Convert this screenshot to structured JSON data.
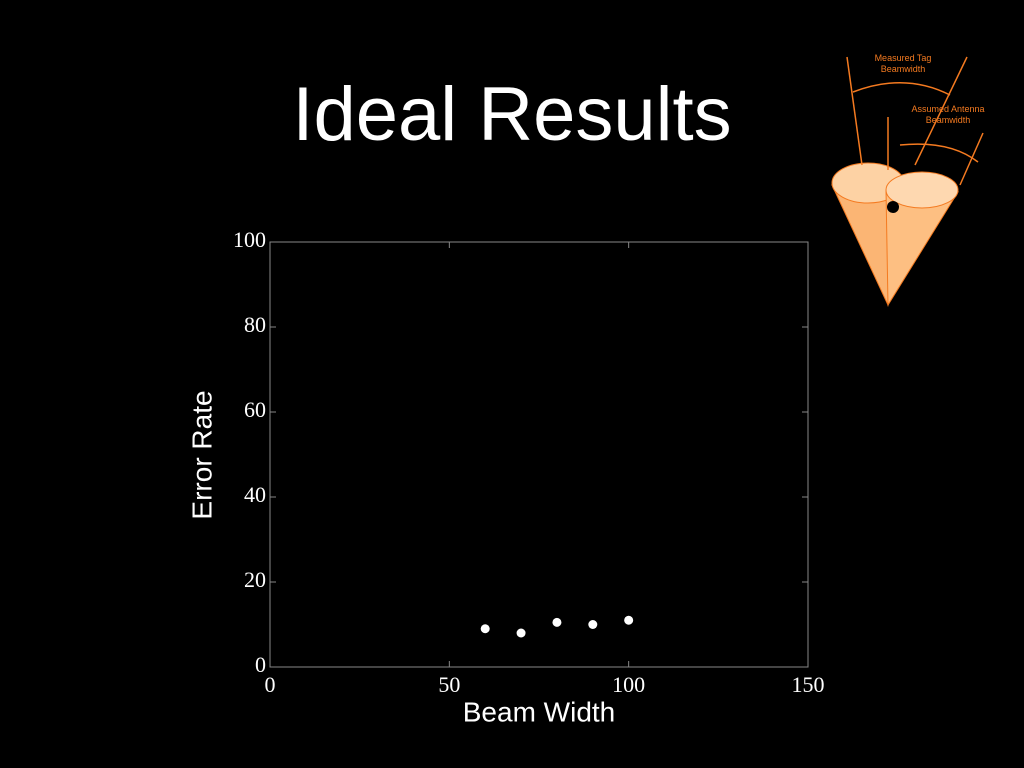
{
  "chart_data": {
    "type": "scatter",
    "title": "Ideal Results",
    "x_label": "Beam Width",
    "y_label": "Error Rate",
    "x": [
      60,
      70,
      80,
      90,
      100
    ],
    "values": [
      9,
      8,
      10.5,
      10,
      11
    ],
    "color": "#ffffff",
    "xlim": [
      0,
      150
    ],
    "ylim": [
      0,
      100
    ],
    "xticks": [
      0,
      50,
      100,
      150
    ],
    "yticks": [
      0,
      20,
      40,
      60,
      80,
      100
    ],
    "grid": false,
    "annotations": [
      "Measured Tag Beamwidth",
      "Assumed Antenna Beamwidth"
    ]
  }
}
